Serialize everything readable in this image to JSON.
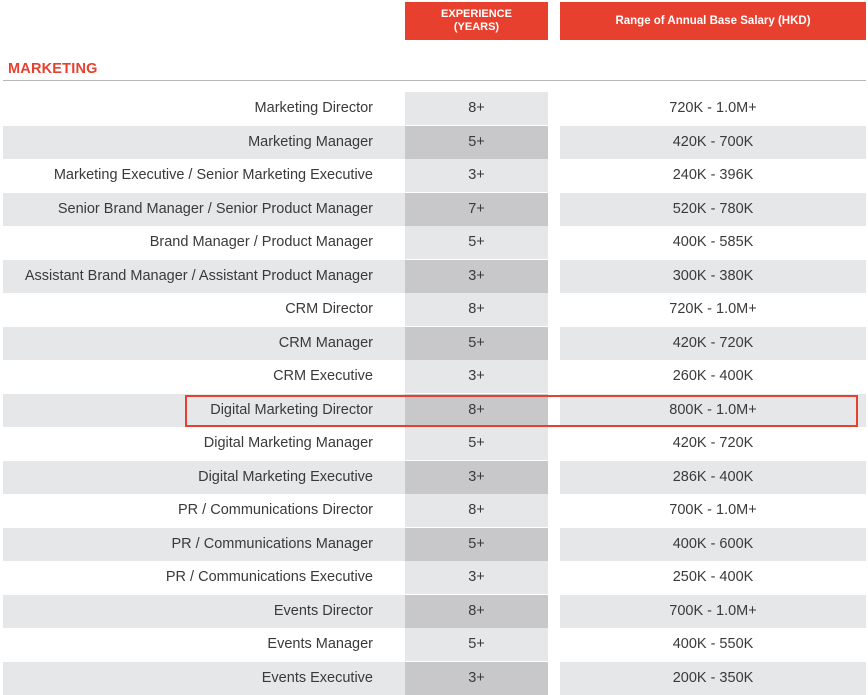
{
  "header": {
    "experience_line1": "EXPERIENCE",
    "experience_line2": "(YEARS)",
    "salary": "Range of Annual Base Salary (HKD)"
  },
  "section": {
    "title": "MARKETING"
  },
  "rows": [
    {
      "title": "Marketing Director",
      "experience": "8+",
      "salary": "720K - 1.0M+"
    },
    {
      "title": "Marketing Manager",
      "experience": "5+",
      "salary": "420K - 700K"
    },
    {
      "title": "Marketing Executive / Senior Marketing Executive",
      "experience": "3+",
      "salary": "240K - 396K"
    },
    {
      "title": "Senior Brand Manager / Senior Product Manager",
      "experience": "7+",
      "salary": "520K - 780K"
    },
    {
      "title": "Brand Manager / Product Manager",
      "experience": "5+",
      "salary": "400K - 585K"
    },
    {
      "title": "Assistant Brand Manager / Assistant Product Manager",
      "experience": "3+",
      "salary": "300K - 380K"
    },
    {
      "title": "CRM Director",
      "experience": "8+",
      "salary": "720K - 1.0M+"
    },
    {
      "title": "CRM Manager",
      "experience": "5+",
      "salary": "420K - 720K"
    },
    {
      "title": "CRM Executive",
      "experience": "3+",
      "salary": "260K - 400K"
    },
    {
      "title": "Digital Marketing Director",
      "experience": "8+",
      "salary": "800K - 1.0M+"
    },
    {
      "title": "Digital Marketing Manager",
      "experience": "5+",
      "salary": "420K - 720K"
    },
    {
      "title": "Digital Marketing Executive",
      "experience": "3+",
      "salary": "286K - 400K"
    },
    {
      "title": "PR / Communications Director",
      "experience": "8+",
      "salary": "700K - 1.0M+"
    },
    {
      "title": "PR / Communications Manager",
      "experience": "5+",
      "salary": "400K - 600K"
    },
    {
      "title": "PR / Communications Executive",
      "experience": "3+",
      "salary": "250K - 400K"
    },
    {
      "title": "Events Director",
      "experience": "8+",
      "salary": "700K - 1.0M+"
    },
    {
      "title": "Events Manager",
      "experience": "5+",
      "salary": "400K - 550K"
    },
    {
      "title": "Events Executive",
      "experience": "3+",
      "salary": "200K - 350K"
    }
  ],
  "highlighted_row": "Digital Marketing Director",
  "colors": {
    "accent": "#e8402e",
    "band": "#e6e7e8",
    "band_dark": "#c8c8ca"
  }
}
